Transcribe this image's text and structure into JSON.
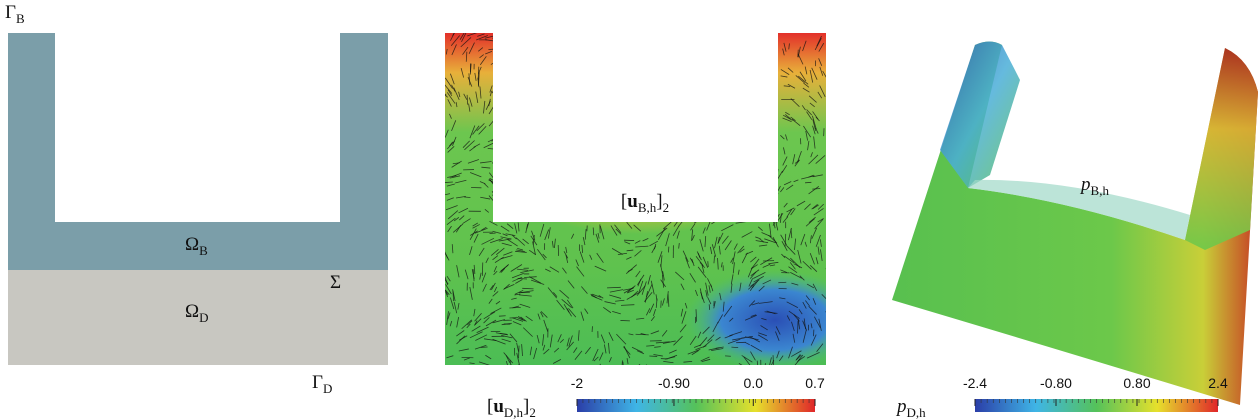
{
  "panels": [
    {
      "labels": [
        {
          "symbol": "Γ",
          "sub": "B"
        },
        {
          "symbol": "Ω",
          "sub": "B"
        },
        {
          "symbol": "Σ"
        },
        {
          "symbol": "Ω",
          "sub": "D"
        },
        {
          "symbol": "Γ",
          "sub": "D"
        }
      ]
    },
    {
      "label": {
        "open": "[",
        "symbol": "u",
        "sub": "B,h",
        "close": "]",
        "outer_sub": "2"
      },
      "colorbar": {
        "label": {
          "open": "[",
          "symbol": "u",
          "sub": "D,h",
          "close": "]",
          "outer_sub": "2"
        },
        "lim": [
          -2,
          0.7
        ],
        "ticks": [
          {
            "value": -2,
            "label": "-2"
          },
          {
            "value": -0.9,
            "label": "-0.90"
          },
          {
            "value": 0,
            "label": "0.0"
          },
          {
            "value": 0.7,
            "label": "0.7"
          }
        ]
      }
    },
    {
      "label": {
        "symbol": "p",
        "sub": "B,h"
      },
      "colorbar": {
        "label": {
          "symbol": "p",
          "sub": "D,h"
        },
        "lim": [
          -2.4,
          2.4
        ],
        "ticks": [
          {
            "value": -2.4,
            "label": "-2.4"
          },
          {
            "value": -0.8,
            "label": "-0.80"
          },
          {
            "value": 0.8,
            "label": "0.80"
          },
          {
            "value": 2.4,
            "label": "2.4"
          }
        ]
      }
    }
  ]
}
